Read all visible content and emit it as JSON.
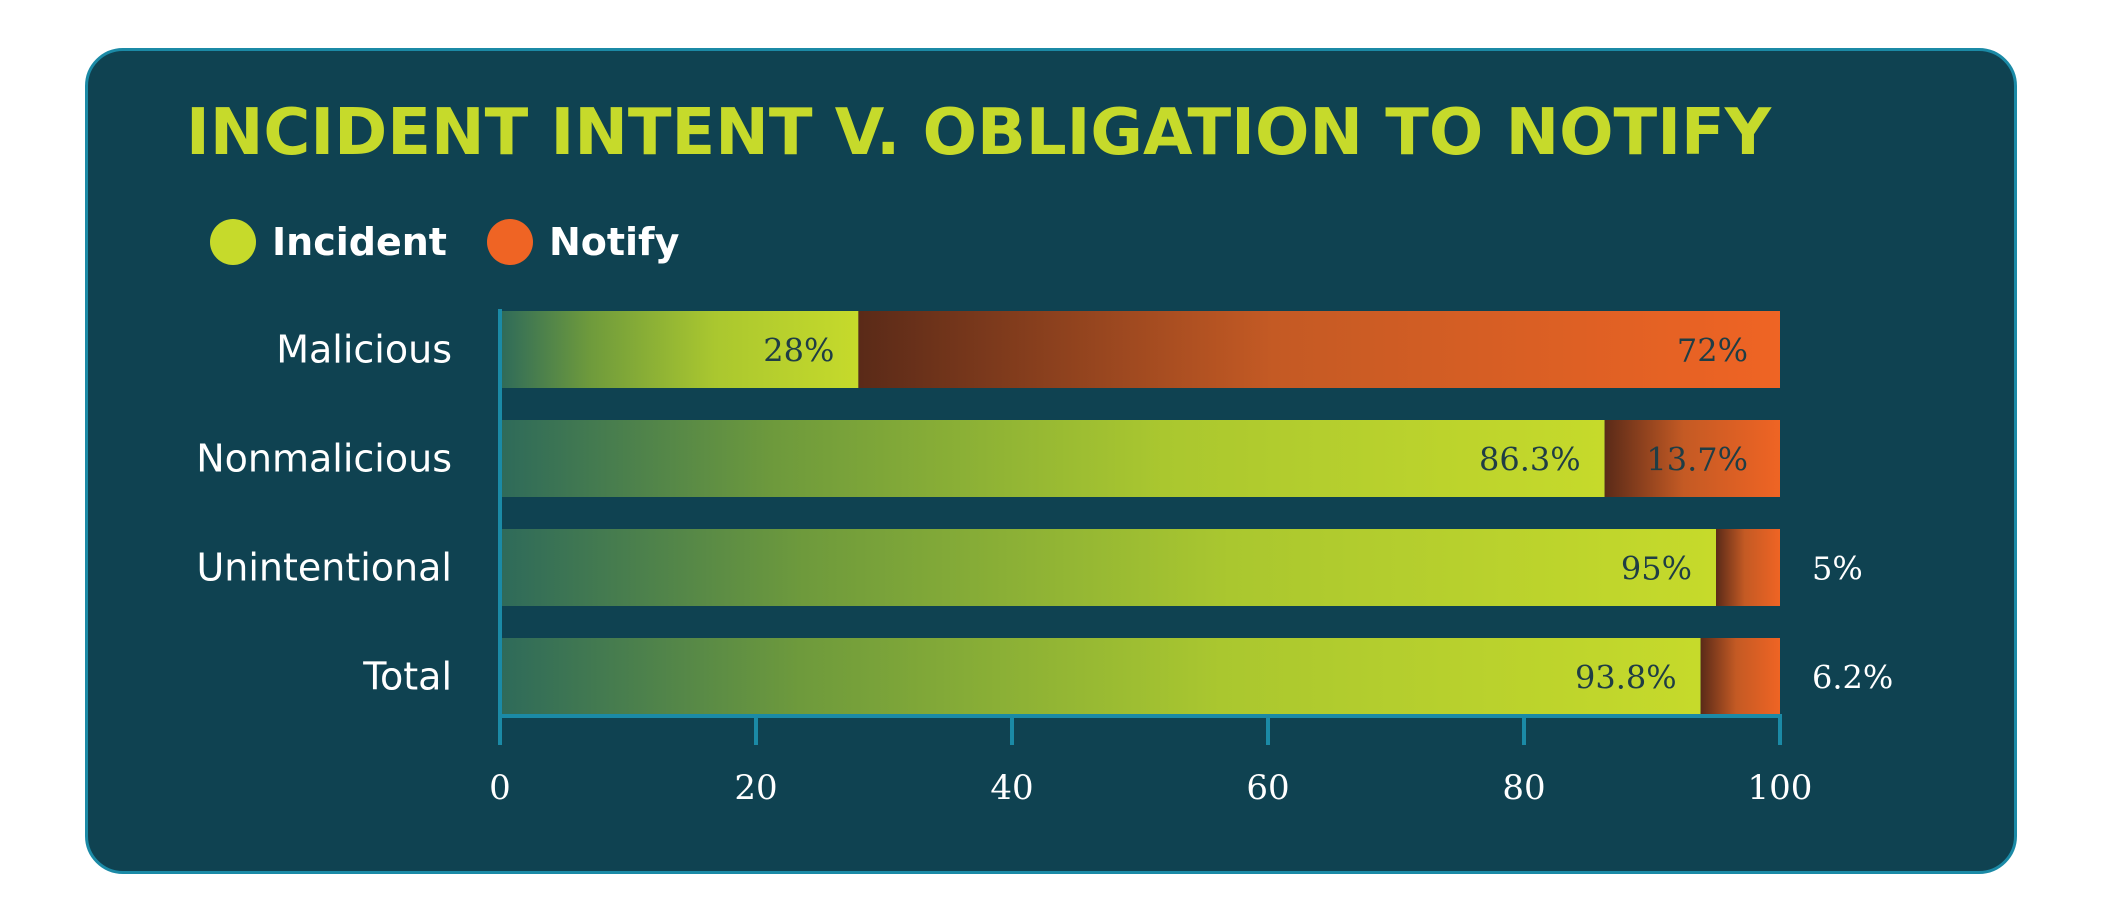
{
  "chart_data": {
    "type": "bar",
    "orientation": "horizontal",
    "stacked": true,
    "title": "INCIDENT INTENT V. OBLIGATION TO NOTIFY",
    "categories": [
      "Malicious",
      "Nonmalicious",
      "Unintentional",
      "Total"
    ],
    "series": [
      {
        "name": "Incident",
        "color": "#c6da2b",
        "values": [
          28,
          86.3,
          95,
          93.8
        ],
        "labels": [
          "28%",
          "86.3%",
          "95%",
          "93.8%"
        ]
      },
      {
        "name": "Notify",
        "color": "#ef6424",
        "values": [
          72,
          13.7,
          5,
          6.2
        ],
        "labels": [
          "72%",
          "13.7%",
          "5%",
          "6.2%"
        ]
      }
    ],
    "xlim": [
      0,
      100
    ],
    "xticks": [
      0,
      20,
      40,
      60,
      80,
      100
    ],
    "xtick_labels": [
      "0",
      "20",
      "40",
      "60",
      "80",
      "100"
    ],
    "legend_position": "top-left",
    "grid": false
  },
  "colors": {
    "background": "#0f4251",
    "border": "#1b8aa6",
    "axis": "#1b8aa6",
    "title": "#c6da2b"
  }
}
